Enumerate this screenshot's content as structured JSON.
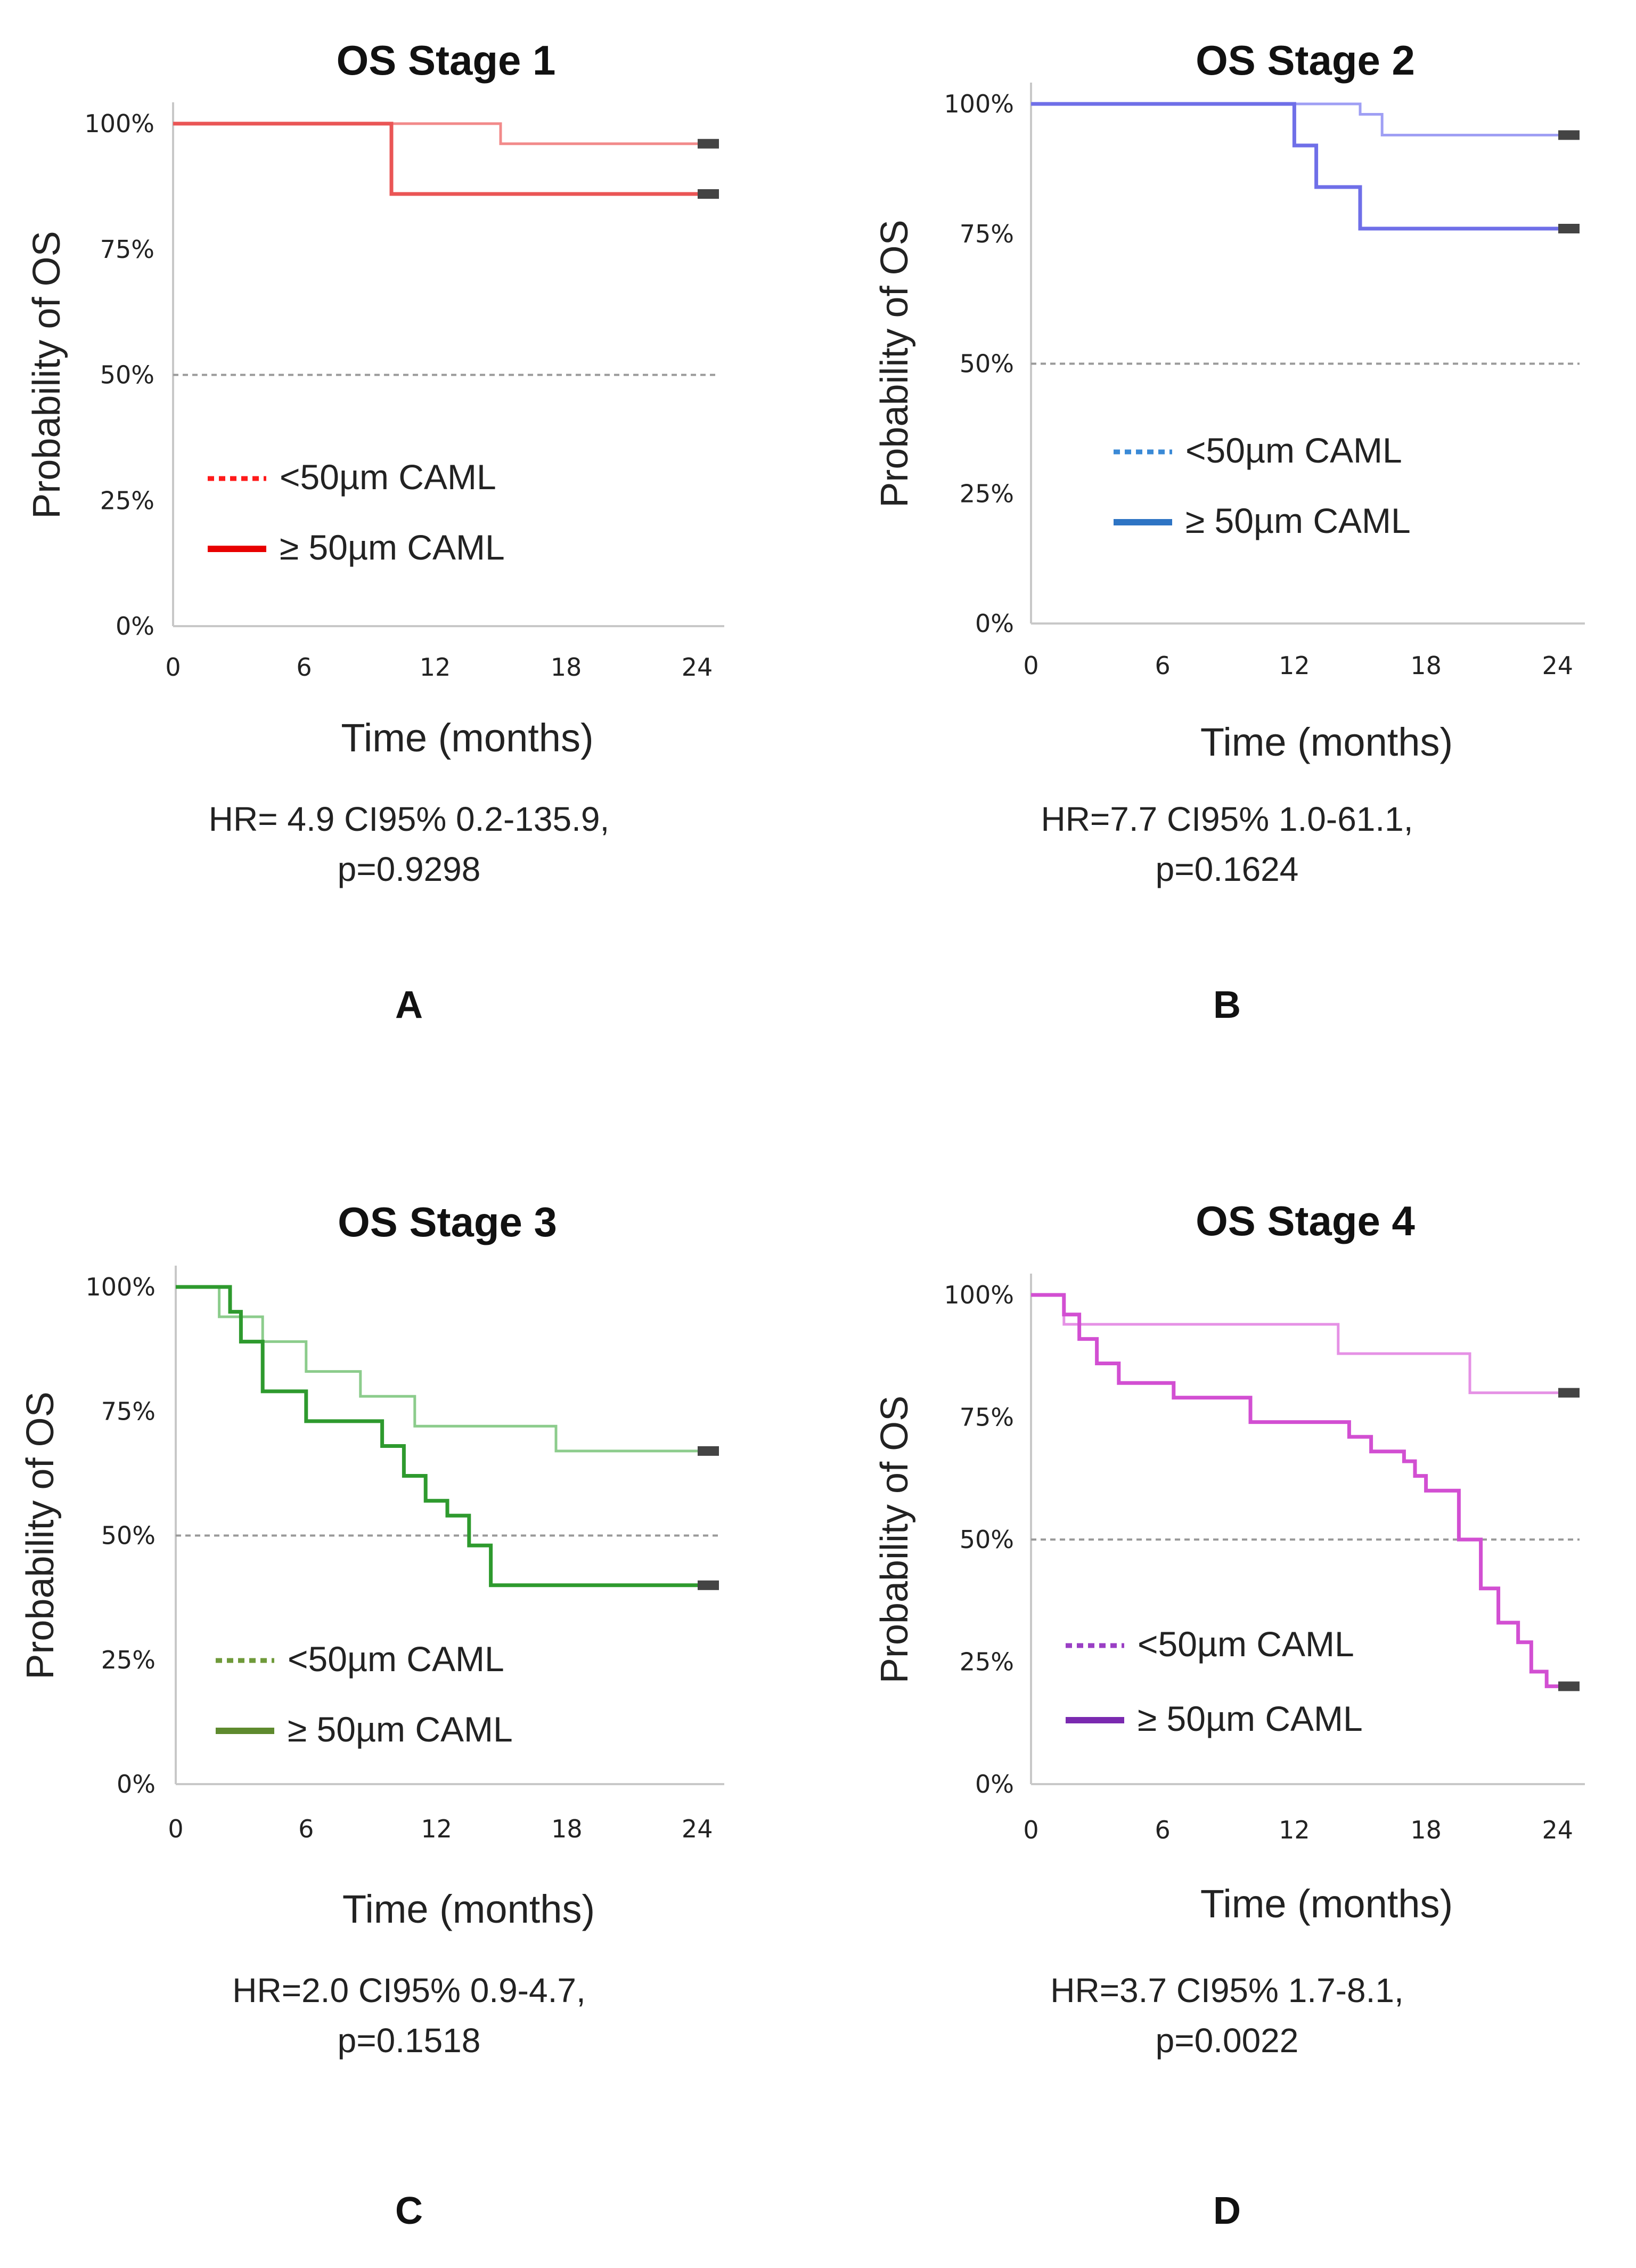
{
  "chart_data": [
    {
      "type": "line",
      "panel_letter": "A",
      "title": "OS Stage 1",
      "xlabel": "Time (months)",
      "ylabel": "Probability of OS",
      "xlim": [
        0,
        25
      ],
      "ylim": [
        0,
        100
      ],
      "xticks": [
        "0",
        "6",
        "12",
        "18",
        "24"
      ],
      "yticks": [
        "0%",
        "25%",
        "50%",
        "75%",
        "100%"
      ],
      "reference_line": 50,
      "hr_text": "HR= 4.9 CI95% 0.2-135.9,",
      "p_text": "p=0.9298",
      "colors": {
        "low": "#f28a8a",
        "high": "#ea5555",
        "legend_low": "#ff1a1a",
        "legend_high": "#e80000"
      },
      "series": [
        {
          "name": "<50µm CAML",
          "style": "dotted",
          "x": [
            0,
            15,
            25
          ],
          "y": [
            100,
            96,
            96
          ]
        },
        {
          "name": "≥ 50µm CAML",
          "style": "solid",
          "x": [
            0,
            10,
            25
          ],
          "y": [
            100,
            86,
            86
          ]
        }
      ]
    },
    {
      "type": "line",
      "panel_letter": "B",
      "title": "OS Stage 2",
      "xlabel": "Time (months)",
      "ylabel": "Probability of OS",
      "xlim": [
        0,
        25
      ],
      "ylim": [
        0,
        100
      ],
      "xticks": [
        "0",
        "6",
        "12",
        "18",
        "24"
      ],
      "yticks": [
        "0%",
        "25%",
        "50%",
        "75%",
        "100%"
      ],
      "reference_line": 50,
      "hr_text": "HR=7.7 CI95% 1.0-61.1,",
      "p_text": "p=0.1624",
      "colors": {
        "low": "#9f9ff4",
        "high": "#6f6fe8",
        "legend_low": "#3a8ad6",
        "legend_high": "#2d74c4"
      },
      "series": [
        {
          "name": "<50µm CAML",
          "style": "dotted",
          "x": [
            0,
            15,
            16,
            25
          ],
          "y": [
            100,
            98,
            94,
            94
          ]
        },
        {
          "name": "≥ 50µm CAML",
          "style": "solid",
          "x": [
            0,
            12,
            13,
            15,
            25
          ],
          "y": [
            100,
            92,
            84,
            76,
            76
          ]
        }
      ]
    },
    {
      "type": "line",
      "panel_letter": "C",
      "title": "OS Stage 3",
      "xlabel": "Time (months)",
      "ylabel": "Probability of OS",
      "xlim": [
        0,
        25
      ],
      "ylim": [
        0,
        100
      ],
      "xticks": [
        "0",
        "6",
        "12",
        "18",
        "24"
      ],
      "yticks": [
        "0%",
        "25%",
        "50%",
        "75%",
        "100%"
      ],
      "reference_line": 50,
      "hr_text": "HR=2.0 CI95% 0.9-4.7,",
      "p_text": "p=0.1518",
      "colors": {
        "low": "#8ccc8c",
        "high": "#2e9a2e",
        "legend_low": "#6f9a3a",
        "legend_high": "#5e8a2e"
      },
      "series": [
        {
          "name": "<50µm CAML",
          "style": "dotted",
          "x": [
            0,
            2,
            4,
            6,
            8.5,
            11,
            17.5,
            25
          ],
          "y": [
            100,
            94,
            89,
            83,
            78,
            72,
            67,
            67
          ]
        },
        {
          "name": "≥ 50µm CAML",
          "style": "solid",
          "x": [
            0,
            2.5,
            3,
            4,
            6,
            9.5,
            10.5,
            11.5,
            12.5,
            13.5,
            14.5,
            25
          ],
          "y": [
            100,
            95,
            89,
            79,
            73,
            68,
            62,
            57,
            54,
            48,
            40,
            40
          ]
        }
      ]
    },
    {
      "type": "line",
      "panel_letter": "D",
      "title": "OS Stage 4",
      "xlabel": "Time (months)",
      "ylabel": "Probability of OS",
      "xlim": [
        0,
        25
      ],
      "ylim": [
        0,
        100
      ],
      "xticks": [
        "0",
        "6",
        "12",
        "18",
        "24"
      ],
      "yticks": [
        "0%",
        "25%",
        "50%",
        "75%",
        "100%"
      ],
      "reference_line": 50,
      "hr_text": "HR=3.7 CI95% 1.7-8.1,",
      "p_text": "p=0.0022",
      "colors": {
        "low": "#e591e5",
        "high": "#d24fd2",
        "legend_low": "#9a3fc4",
        "legend_high": "#7a2ab0"
      },
      "series": [
        {
          "name": "<50µm CAML",
          "style": "dotted",
          "x": [
            0,
            1.5,
            14,
            20,
            25
          ],
          "y": [
            100,
            94,
            88,
            80,
            80
          ]
        },
        {
          "name": "≥ 50µm CAML",
          "style": "solid",
          "x": [
            0,
            1.5,
            2.2,
            3,
            4,
            6.5,
            10,
            14.5,
            15.5,
            17,
            17.5,
            18,
            19.5,
            20.5,
            21.3,
            22.2,
            22.8,
            23.5,
            25
          ],
          "y": [
            100,
            96,
            91,
            86,
            82,
            79,
            74,
            71,
            68,
            66,
            63,
            60,
            50,
            40,
            33,
            29,
            23,
            20,
            20
          ]
        }
      ]
    }
  ]
}
